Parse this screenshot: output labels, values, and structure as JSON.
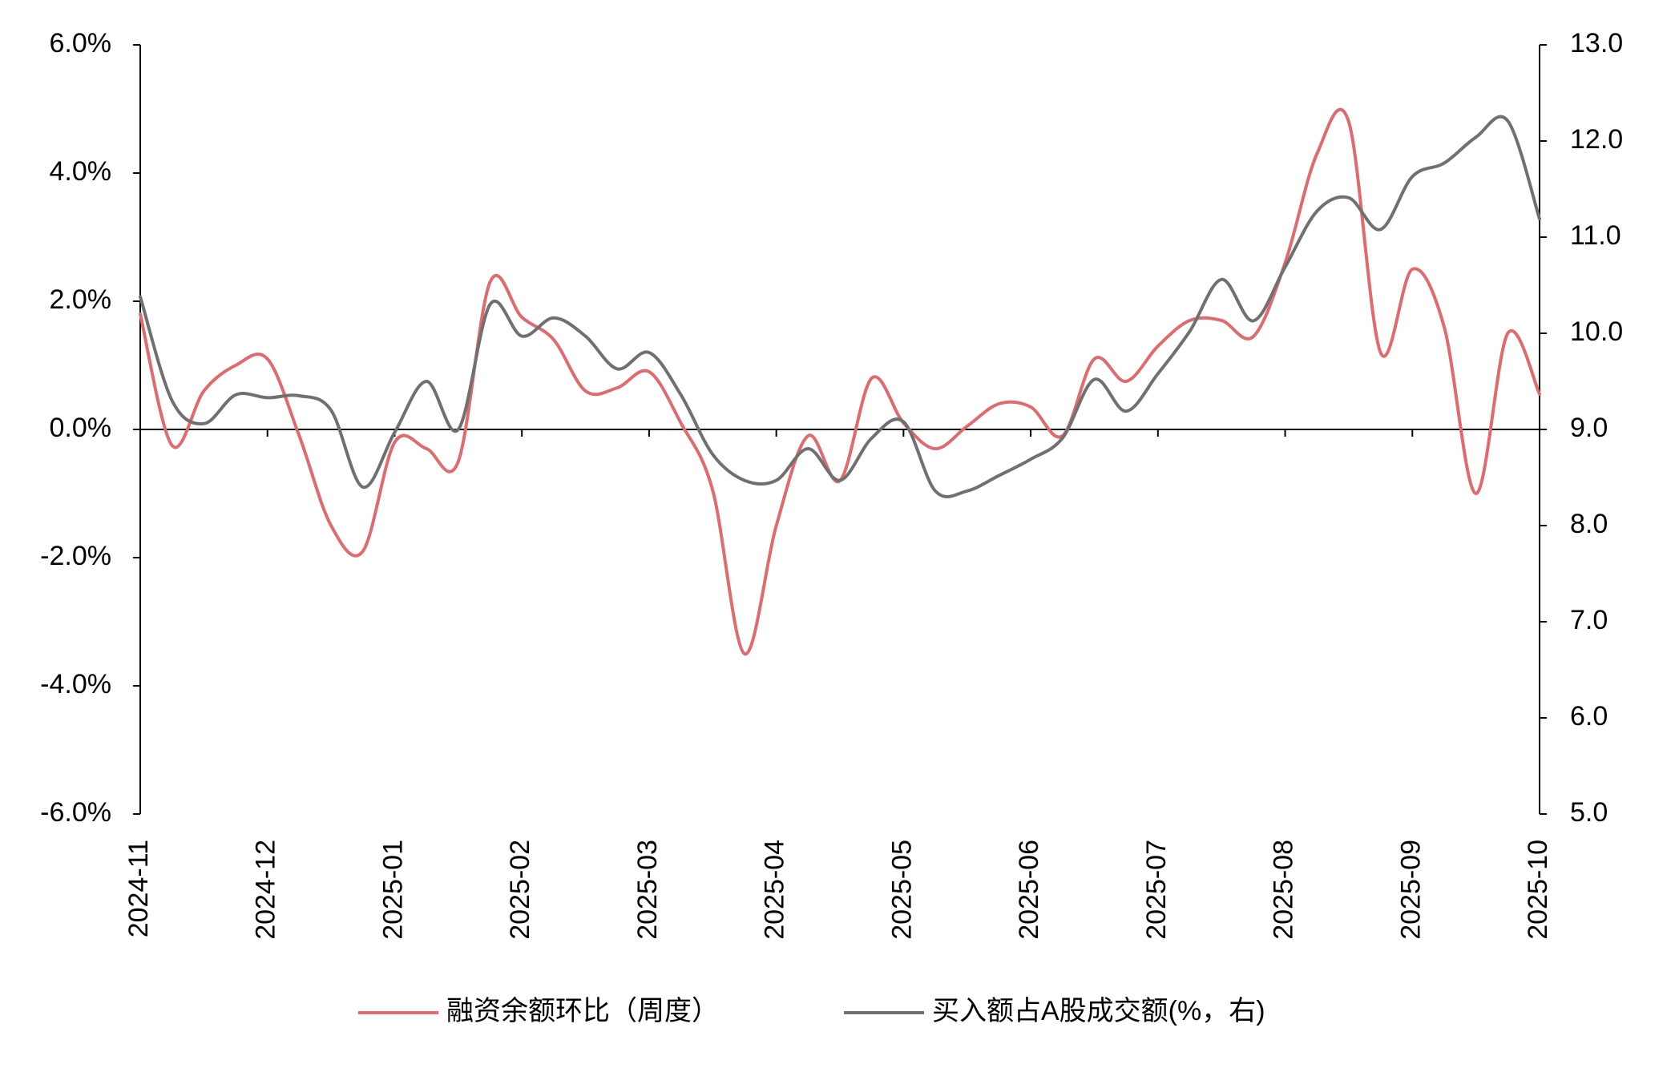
{
  "chart_data": {
    "type": "line",
    "categories": [
      "2024-11",
      null,
      null,
      null,
      "2024-12",
      null,
      null,
      null,
      "2025-01",
      null,
      null,
      null,
      "2025-02",
      null,
      null,
      null,
      "2025-03",
      null,
      null,
      null,
      "2025-04",
      null,
      null,
      null,
      "2025-05",
      null,
      null,
      null,
      "2025-06",
      null,
      null,
      null,
      "2025-07",
      null,
      null,
      null,
      "2025-08",
      null,
      null,
      null,
      "2025-09",
      null,
      null,
      null,
      "2025-10"
    ],
    "series": [
      {
        "name": "融资余额环比（周度）",
        "color": "#e06a6e",
        "axis": "y",
        "values": [
          1.8,
          -0.25,
          0.6,
          1.0,
          1.1,
          -0.1,
          -1.5,
          -1.9,
          -0.2,
          -0.3,
          -0.5,
          2.3,
          1.75,
          1.4,
          0.6,
          0.65,
          0.9,
          0.1,
          -0.95,
          -3.5,
          -1.5,
          -0.1,
          -0.8,
          0.8,
          0.1,
          -0.3,
          0.05,
          0.4,
          0.35,
          -0.1,
          1.1,
          0.75,
          1.3,
          1.7,
          1.7,
          1.45,
          2.6,
          4.3,
          4.8,
          1.2,
          2.5,
          1.6,
          -1.0,
          1.5,
          0.55
        ]
      },
      {
        "name": "买入额占A股成交额(%，右)",
        "color": "#707070",
        "axis": "y2",
        "values": [
          10.38,
          9.3,
          9.06,
          9.36,
          9.33,
          9.35,
          9.2,
          8.4,
          8.97,
          9.5,
          9.0,
          10.3,
          9.97,
          10.16,
          9.97,
          9.63,
          9.8,
          9.36,
          8.74,
          8.47,
          8.47,
          8.8,
          8.47,
          8.91,
          9.08,
          8.36,
          8.36,
          8.52,
          8.69,
          8.91,
          9.52,
          9.19,
          9.58,
          10.02,
          10.56,
          10.13,
          10.69,
          11.27,
          11.41,
          11.08,
          11.63,
          11.77,
          12.04,
          12.21,
          11.19
        ]
      }
    ],
    "ylim": [
      -6,
      6
    ],
    "yticks": [
      {
        "value": -6,
        "label": "-6.0%"
      },
      {
        "value": -4,
        "label": "-4.0%"
      },
      {
        "value": -2,
        "label": "-2.0%"
      },
      {
        "value": 0,
        "label": "0.0%"
      },
      {
        "value": 2,
        "label": "2.0%"
      },
      {
        "value": 4,
        "label": "4.0%"
      },
      {
        "value": 6,
        "label": "6.0%"
      }
    ],
    "y2lim": [
      5,
      13
    ],
    "y2ticks": [
      {
        "value": 5,
        "label": "5.0"
      },
      {
        "value": 6,
        "label": "6.0"
      },
      {
        "value": 7,
        "label": "7.0"
      },
      {
        "value": 8,
        "label": "8.0"
      },
      {
        "value": 9,
        "label": "9.0"
      },
      {
        "value": 10,
        "label": "10.0"
      },
      {
        "value": 11,
        "label": "11.0"
      },
      {
        "value": 12,
        "label": "12.0"
      },
      {
        "value": 13,
        "label": "13.0"
      }
    ],
    "legend": "bottom"
  }
}
